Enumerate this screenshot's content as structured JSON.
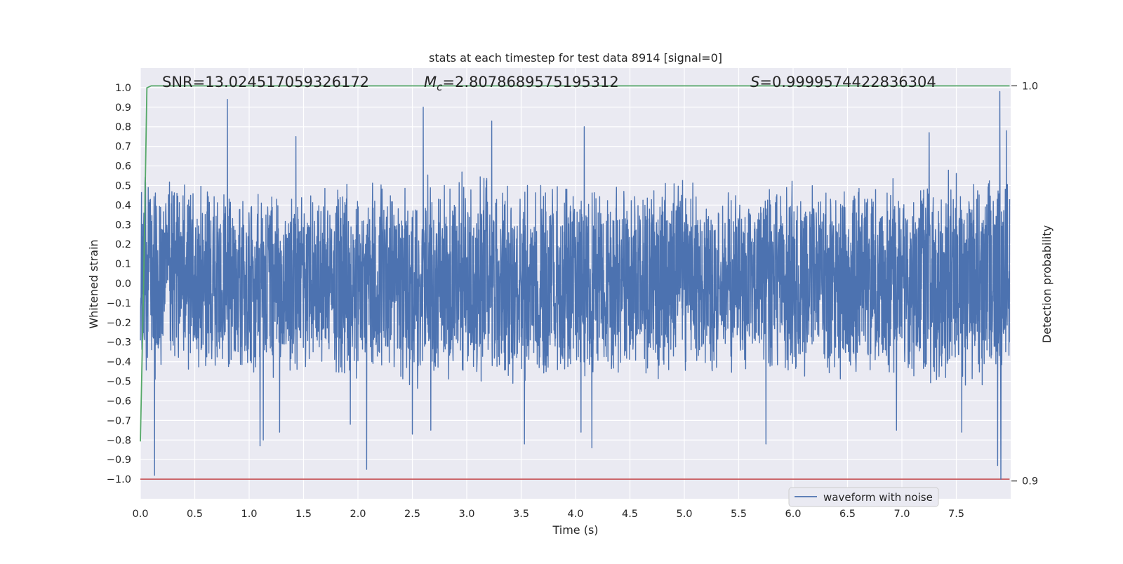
{
  "chart_data": {
    "type": "line",
    "title": "stats at each timestep for test data 8914 [signal=0]",
    "xlabel": "Time (s)",
    "ylabel": "Whitened strain",
    "y2label": "Detection probability",
    "xlim": [
      0.0,
      8.0
    ],
    "ylim": [
      -1.1,
      1.1
    ],
    "y2lim": [
      0.8955,
      1.0045
    ],
    "grid": true,
    "legend_placement": "lower-center-right",
    "annotations": {
      "snr": "SNR=13.024517059326172",
      "mc_symbol": "M",
      "mc_sub": "c",
      "mc_value": "=2.8078689575195312",
      "s_symbol": "S",
      "s_value": "=0.9999574422836304"
    },
    "x_ticks": [
      0.0,
      0.5,
      1.0,
      1.5,
      2.0,
      2.5,
      3.0,
      3.5,
      4.0,
      4.5,
      5.0,
      5.5,
      6.0,
      6.5,
      7.0,
      7.5
    ],
    "x_tick_labels": [
      "0.0",
      "0.5",
      "1.0",
      "1.5",
      "2.0",
      "2.5",
      "3.0",
      "3.5",
      "4.0",
      "4.5",
      "5.0",
      "5.5",
      "6.0",
      "6.5",
      "7.0",
      "7.5"
    ],
    "y_ticks": [
      1.0,
      0.9,
      0.8,
      0.7,
      0.6,
      0.5,
      0.4,
      0.3,
      0.2,
      0.1,
      0.0,
      -0.1,
      -0.2,
      -0.3,
      -0.4,
      -0.5,
      -0.6,
      -0.7,
      -0.8,
      -0.9,
      -1.0
    ],
    "y_tick_labels": [
      "1.0",
      "0.9",
      "0.8",
      "0.7",
      "0.6",
      "0.5",
      "0.4",
      "0.3",
      "0.2",
      "0.1",
      "0.0",
      "−0.1",
      "−0.2",
      "−0.3",
      "−0.4",
      "−0.5",
      "−0.6",
      "−0.7",
      "−0.8",
      "−0.9",
      "−1.0"
    ],
    "y2_ticks": [
      1.0,
      0.9
    ],
    "y2_tick_labels": [
      "1.0",
      "0.9"
    ],
    "series": [
      {
        "name": "waveform with noise",
        "color": "#4c72b0",
        "sample_interval": 0.002,
        "t_end": 7.99,
        "envelope": {
          "x": [
            0.0,
            0.5,
            1.0,
            1.5,
            2.0,
            2.5,
            3.0,
            3.5,
            4.0,
            4.5,
            5.0,
            5.5,
            6.0,
            6.5,
            7.0,
            7.5,
            7.99
          ],
          "upper": [
            0.55,
            0.55,
            0.55,
            0.52,
            0.55,
            0.58,
            0.6,
            0.58,
            0.6,
            0.55,
            0.55,
            0.52,
            0.55,
            0.52,
            0.55,
            0.6,
            0.65
          ],
          "lower": [
            -0.52,
            -0.5,
            -0.52,
            -0.5,
            -0.52,
            -0.55,
            -0.52,
            -0.55,
            -0.52,
            -0.5,
            -0.5,
            -0.5,
            -0.5,
            -0.52,
            -0.52,
            -0.55,
            -0.6
          ]
        },
        "peaks": [
          {
            "x": 0.13,
            "y": -0.98
          },
          {
            "x": 0.8,
            "y": 0.94
          },
          {
            "x": 1.1,
            "y": -0.83
          },
          {
            "x": 1.13,
            "y": -0.8
          },
          {
            "x": 1.28,
            "y": -0.76
          },
          {
            "x": 1.43,
            "y": 0.75
          },
          {
            "x": 1.93,
            "y": -0.72
          },
          {
            "x": 2.08,
            "y": -0.95
          },
          {
            "x": 2.5,
            "y": -0.77
          },
          {
            "x": 2.6,
            "y": 0.9
          },
          {
            "x": 2.67,
            "y": -0.75
          },
          {
            "x": 3.23,
            "y": 0.83
          },
          {
            "x": 3.53,
            "y": -0.82
          },
          {
            "x": 4.08,
            "y": 0.8
          },
          {
            "x": 4.05,
            "y": -0.76
          },
          {
            "x": 4.15,
            "y": -0.84
          },
          {
            "x": 5.75,
            "y": -0.82
          },
          {
            "x": 6.95,
            "y": -0.75
          },
          {
            "x": 7.25,
            "y": 0.77
          },
          {
            "x": 7.55,
            "y": -0.76
          },
          {
            "x": 7.88,
            "y": -0.93
          },
          {
            "x": 7.9,
            "y": 0.98
          },
          {
            "x": 7.91,
            "y": -1.0
          },
          {
            "x": 7.96,
            "y": 0.78
          }
        ]
      },
      {
        "color": "#55a868",
        "axis": "right",
        "x": [
          0.0,
          0.03,
          0.06,
          0.1,
          7.99
        ],
        "y": [
          0.91,
          0.95,
          0.9995,
          1.0,
          1.0
        ]
      },
      {
        "color": "#c44e52",
        "axis": "left",
        "x": [
          0.0,
          7.99
        ],
        "y": [
          -1.0,
          -1.0
        ]
      }
    ]
  },
  "legend": {
    "label": "waveform with noise",
    "color": "#4c72b0"
  },
  "colors": {
    "plot_bg": "#eaeaf2",
    "grid": "#ffffff",
    "text": "#262626"
  }
}
